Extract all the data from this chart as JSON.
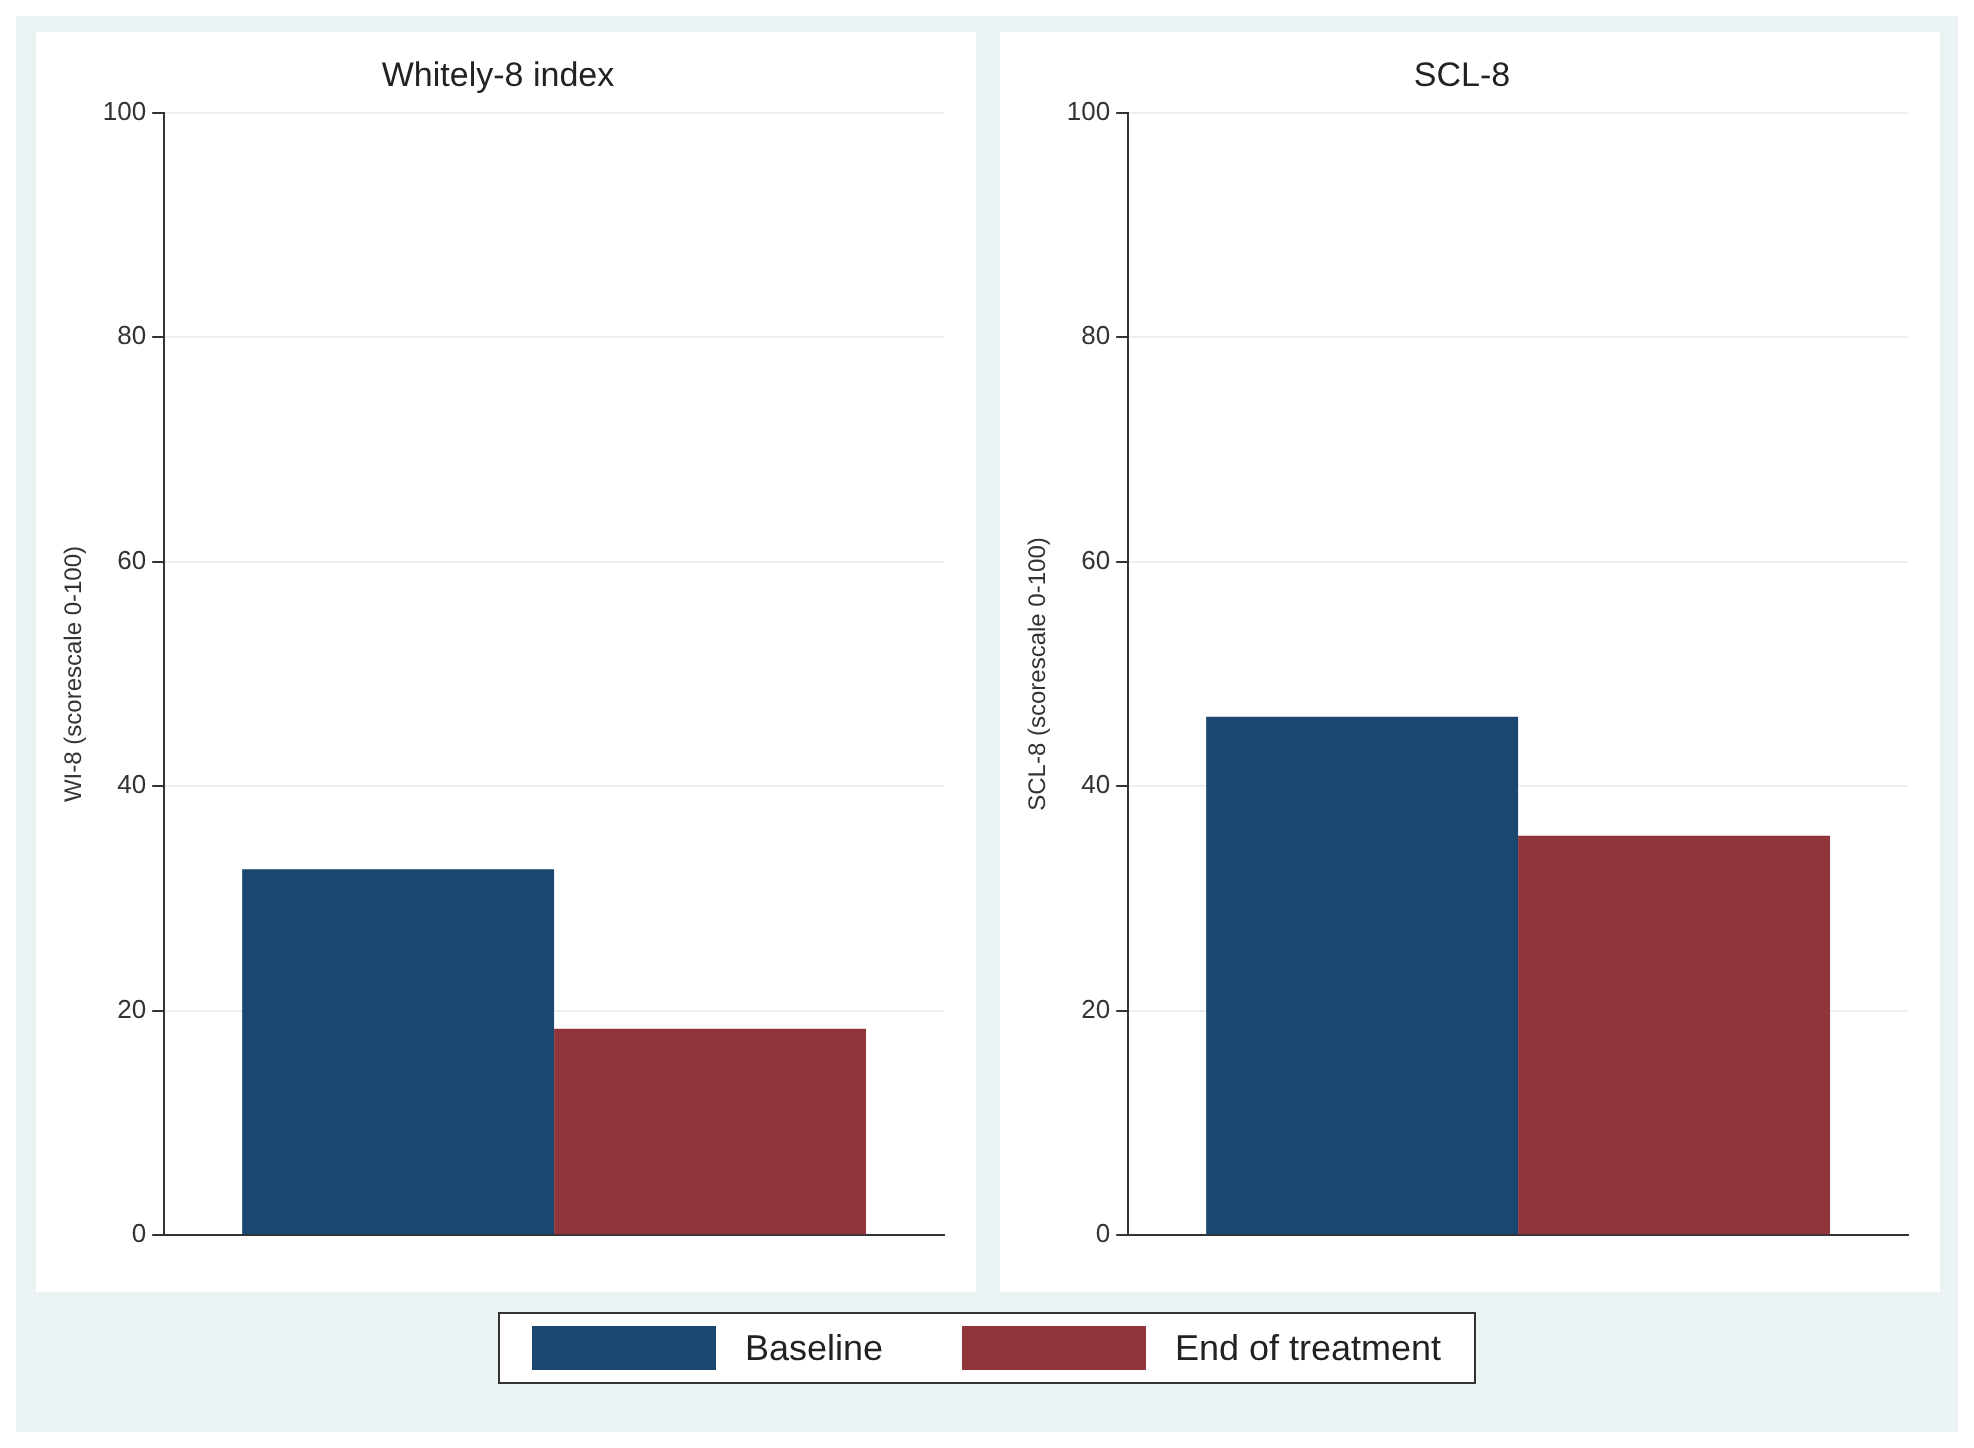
{
  "chart_data": [
    {
      "type": "bar",
      "title": "Whitely-8 index",
      "ylabel": "WI-8 (scorescale 0-100)",
      "categories": [
        null
      ],
      "series": [
        {
          "name": "Baseline",
          "color": "#1a476f",
          "values": [
            32.6
          ]
        },
        {
          "name": "End of treatment",
          "color": "#90353b",
          "values": [
            18.4
          ]
        }
      ],
      "ylim": [
        0,
        100
      ],
      "yticks": [
        0,
        20,
        40,
        60,
        80,
        100
      ],
      "grid": "y",
      "legend": "bottom"
    },
    {
      "type": "bar",
      "title": "SCL-8",
      "ylabel": "SCL-8 (scorescale 0-100)",
      "categories": [
        null
      ],
      "series": [
        {
          "color": "#1a476f",
          "values": [
            46.2
          ]
        },
        {
          "color": "#90353b",
          "values": [
            35.6
          ]
        }
      ],
      "ylim": [
        0,
        100
      ],
      "yticks": [
        0,
        20,
        40,
        60,
        80,
        100
      ],
      "grid": "y"
    }
  ]
}
